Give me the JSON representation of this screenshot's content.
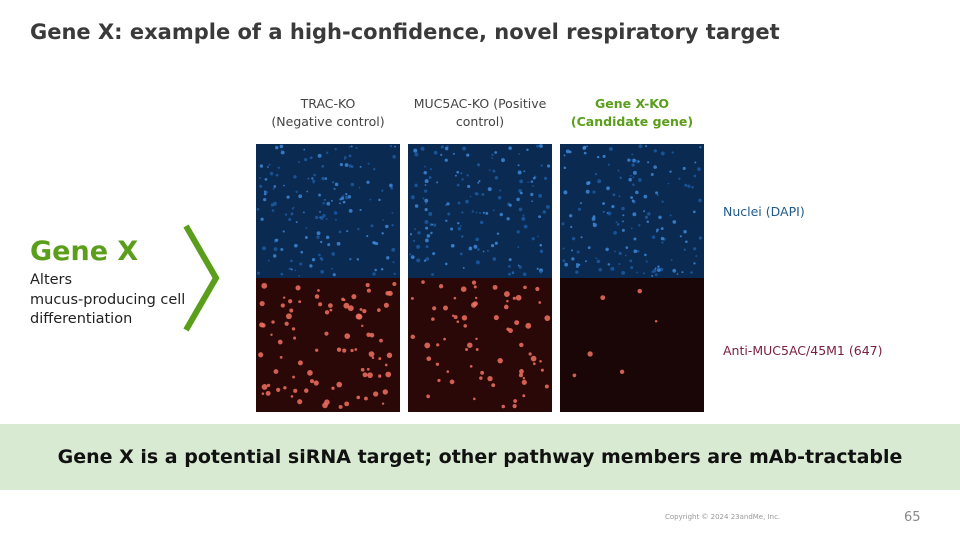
{
  "header": {
    "title": "Gene X: example of a high-confidence, novel respiratory target"
  },
  "columns": [
    {
      "lines": [
        "TRAC-KO",
        "(Negative control)"
      ]
    },
    {
      "lines": [
        "MUC5AC-KO (Positive",
        "control)"
      ]
    },
    {
      "lines": [
        "Gene X-KO",
        "(Candidate gene)"
      ]
    }
  ],
  "rows": [
    {
      "label": "Nuclei (DAPI)"
    },
    {
      "label": "Anti-MUC5AC/45M1 (647)"
    }
  ],
  "gene": {
    "name": "Gene X",
    "description": [
      "Alters",
      "mucus-producing cell",
      "differentiation"
    ]
  },
  "banner": {
    "text": "Gene X is a potential siRNA target; other pathway members are mAb-tractable"
  },
  "footer": {
    "copyright": "Copyright © 2024 23andMe, Inc.",
    "page": "65"
  }
}
